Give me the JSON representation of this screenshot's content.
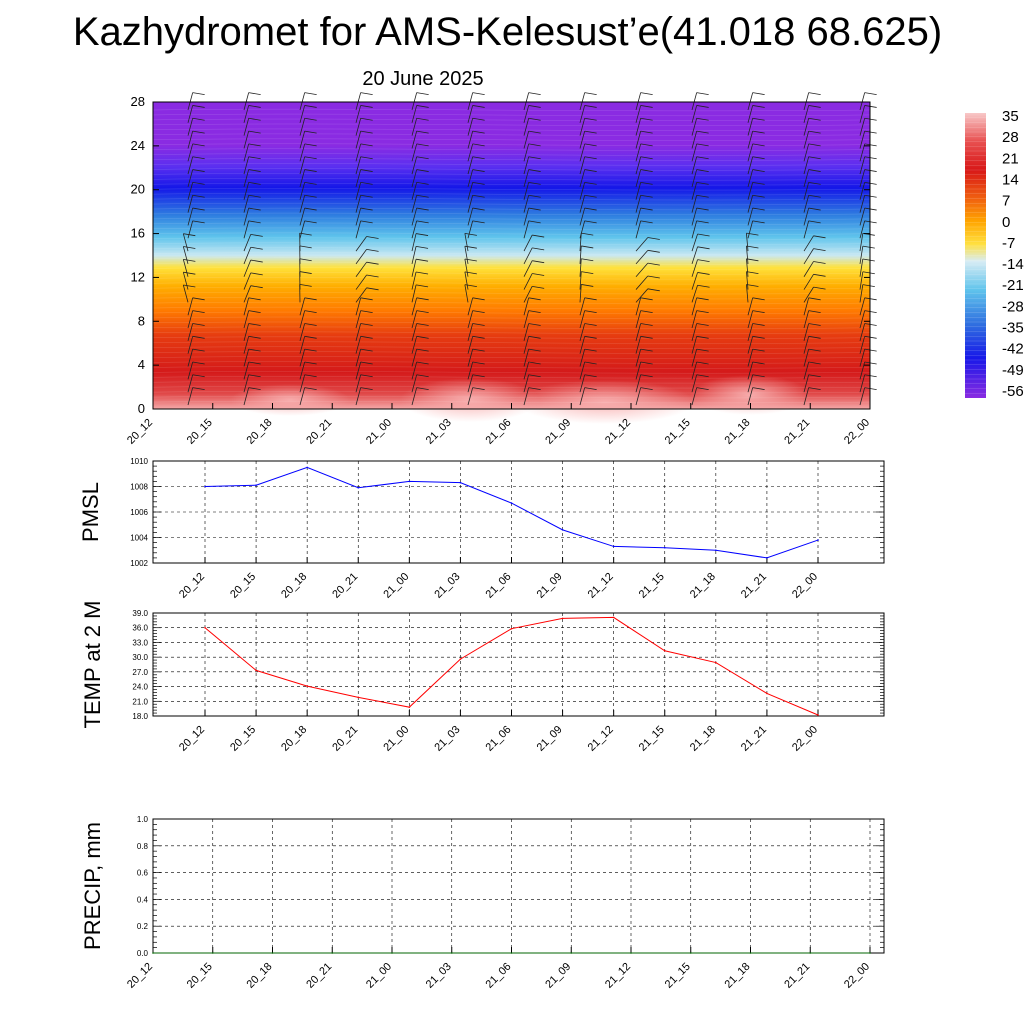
{
  "header": {
    "title": "Kazhydromet for AMS-Kelesust’e(41.018 68.625)",
    "date": "20 June 2025"
  },
  "chart_data": [
    {
      "type": "heatmap",
      "title": "",
      "xlabel": "",
      "ylabel": "",
      "x_tick_labels": [
        "20_12",
        "20_15",
        "20_18",
        "20_21",
        "21_00",
        "21_03",
        "21_06",
        "21_09",
        "21_12",
        "21_15",
        "21_18",
        "21_21",
        "22_00"
      ],
      "y_ticks": [
        0,
        4,
        8,
        12,
        16,
        20,
        24,
        28
      ],
      "ylim": [
        0,
        28
      ],
      "colorbar_labels": [
        "35",
        "28",
        "21",
        "14",
        "7",
        "0",
        "-7",
        "-14",
        "-21",
        "-28",
        "-35",
        "-42",
        "-49",
        "-56"
      ],
      "overlay": "wind barbs"
    },
    {
      "type": "line",
      "ylabel": "PMSL",
      "x_tick_labels": [
        "20_12",
        "20_15",
        "20_18",
        "20_21",
        "21_00",
        "21_03",
        "21_06",
        "21_09",
        "21_12",
        "21_15",
        "21_18",
        "21_21",
        "22_00"
      ],
      "y_ticks": [
        "1002",
        "1004",
        "1006",
        "1008",
        "1010"
      ],
      "ylim": [
        1002,
        1010
      ],
      "grid": true,
      "series": [
        {
          "color": "#0000ff",
          "values": [
            1008.0,
            1008.1,
            1009.5,
            1007.9,
            1008.4,
            1008.3,
            1006.7,
            1004.6,
            1003.3,
            1003.2,
            1003.0,
            1002.4,
            1003.8
          ]
        }
      ]
    },
    {
      "type": "line",
      "ylabel": "TEMP at 2 M",
      "x_tick_labels": [
        "20_12",
        "20_15",
        "20_18",
        "20_21",
        "21_00",
        "21_03",
        "21_06",
        "21_09",
        "21_12",
        "21_15",
        "21_18",
        "21_21",
        "22_00"
      ],
      "y_ticks": [
        "18.0",
        "21.0",
        "24.0",
        "27.0",
        "30.0",
        "33.0",
        "36.0",
        "39.0"
      ],
      "ylim": [
        18,
        39
      ],
      "grid": true,
      "series": [
        {
          "color": "#ff0000",
          "values": [
            36.0,
            27.3,
            24.1,
            21.8,
            19.8,
            29.6,
            35.8,
            37.9,
            38.1,
            31.3,
            28.9,
            22.6,
            18.2
          ]
        }
      ]
    },
    {
      "type": "line",
      "ylabel": "PRECIP, mm",
      "x_tick_labels": [
        "20_12",
        "20_15",
        "20_18",
        "20_21",
        "21_00",
        "21_03",
        "21_06",
        "21_09",
        "21_12",
        "21_15",
        "21_18",
        "21_21",
        "22_00"
      ],
      "y_ticks": [
        "0.0",
        "0.2",
        "0.4",
        "0.6",
        "0.8",
        "1.0"
      ],
      "ylim": [
        0,
        1
      ],
      "grid": true,
      "series": [
        {
          "color": "#006400",
          "values": [
            0,
            0,
            0,
            0,
            0,
            0,
            0,
            0,
            0,
            0,
            0,
            0,
            0
          ]
        }
      ]
    }
  ]
}
